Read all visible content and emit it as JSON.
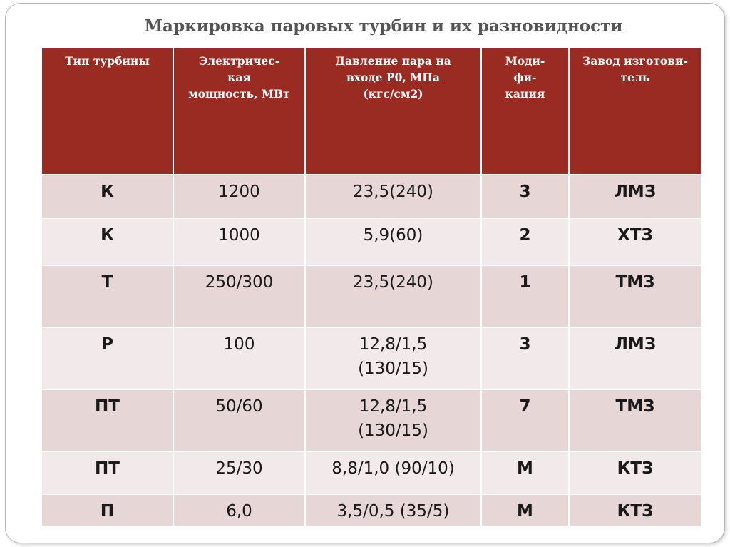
{
  "title": "Маркировка паровых турбин и их разновидности",
  "table": {
    "headers": {
      "type": "Тип турбины",
      "power": "Электричес-\nкая\nмощность, МВт",
      "pressure": "Давление пара на\nвходе Р0, МПа\n(кгс/см2)",
      "mod": "Моди-\nфи-\nкация",
      "plant": "Завод изготови-\nтель"
    },
    "rows": [
      {
        "type": "К",
        "power": "1200",
        "pressure": "23,5(240)",
        "mod": "3",
        "plant": "ЛМЗ"
      },
      {
        "type": "К",
        "power": "1000",
        "pressure": "5,9(60)",
        "mod": "2",
        "plant": "ХТЗ"
      },
      {
        "type": "Т",
        "power": "250/300",
        "pressure": "23,5(240)",
        "mod": "1",
        "plant": "ТМЗ"
      },
      {
        "type": "Р",
        "power": "100",
        "pressure": "12,8/1,5\n(130/15)",
        "mod": "3",
        "plant": "ЛМЗ"
      },
      {
        "type": "ПТ",
        "power": "50/60",
        "pressure": "12,8/1,5\n(130/15)",
        "mod": "7",
        "plant": "ТМЗ"
      },
      {
        "type": "ПТ",
        "power": "25/30",
        "pressure": "8,8/1,0 (90/10)",
        "mod": "М",
        "plant": "КТЗ"
      },
      {
        "type": "П",
        "power": "6,0",
        "pressure": "3,5/0,5 (35/5)",
        "mod": "М",
        "plant": "КТЗ"
      }
    ]
  }
}
